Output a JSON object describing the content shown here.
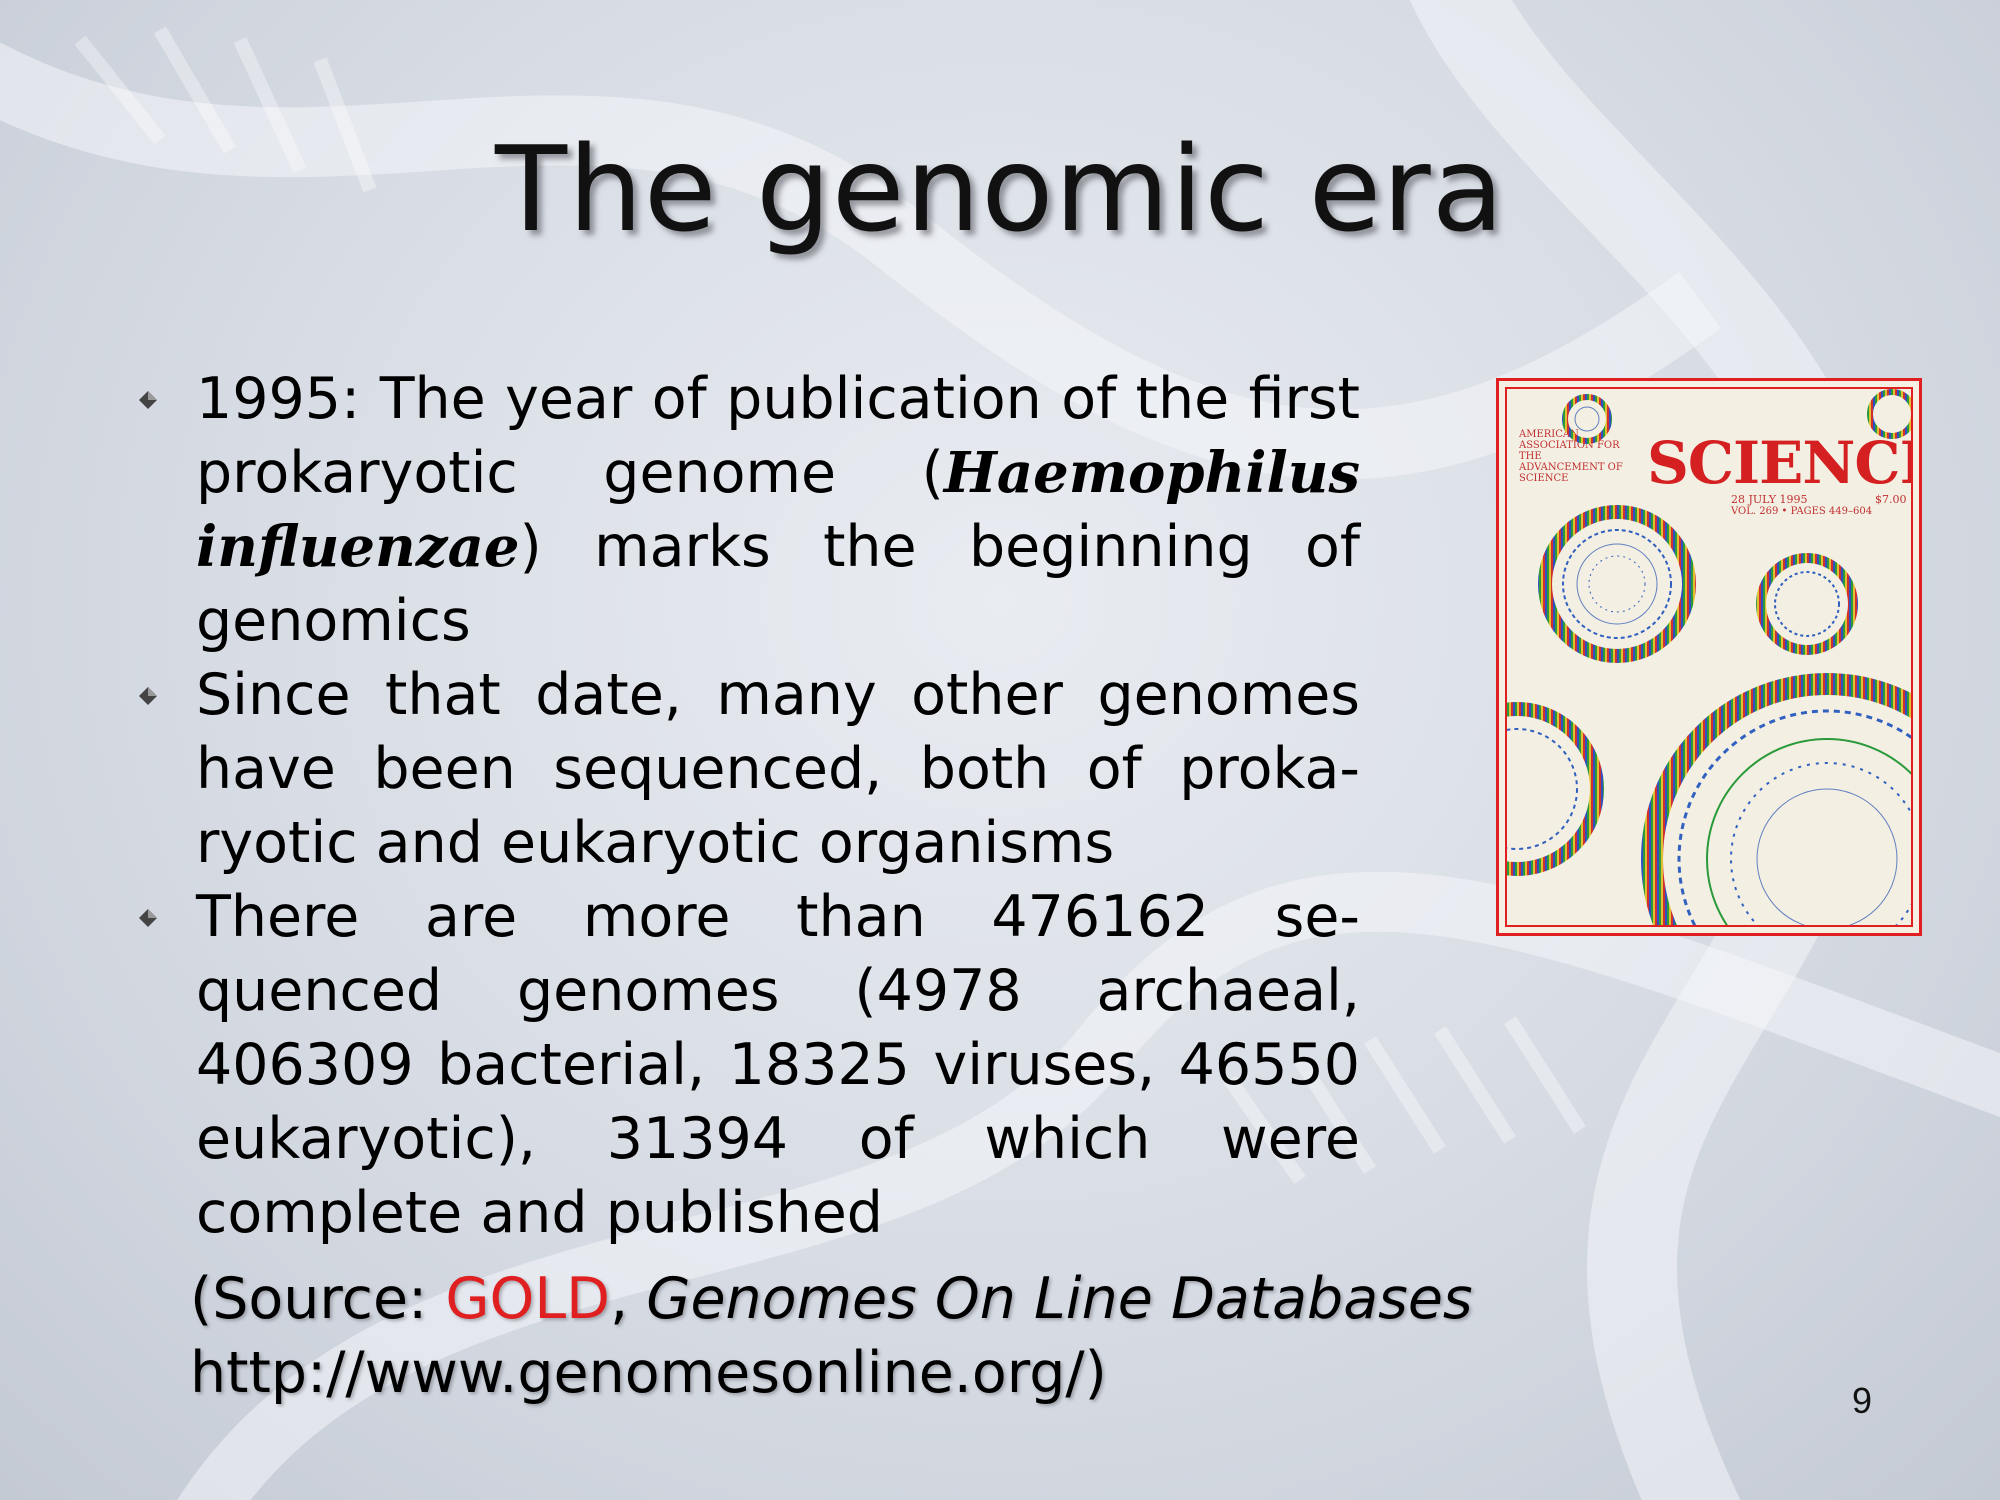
{
  "slide": {
    "title": "The genomic era",
    "page_number": "9"
  },
  "bullets": [
    {
      "icon": "diamond-bullet-icon",
      "text_before": "1995: The year of publication of the first prokaryotic genome (",
      "species": "Haemophilus influenzae",
      "text_after": ") marks the beginning of genomics"
    },
    {
      "icon": "diamond-bullet-icon",
      "text": "Since that date, many other genomes have been sequenced, both of proka-ryotic and eukaryotic organisms"
    },
    {
      "icon": "diamond-bullet-icon",
      "text": "There are more than 476162 se-quenced genomes (4978 archaeal, 406309 bacterial, 18325 viruses, 46550 eukaryotic), 31394 of which were complete and published"
    }
  ],
  "source": {
    "prefix": "(Source: ",
    "gold": "GOLD",
    "separator": ", ",
    "name": "Genomes On Line Databases",
    "url": "http://www.genomesonline.org/",
    "suffix": ")"
  },
  "cover": {
    "journal": "SCIENCE",
    "publisher": "AMERICAN ASSOCIATION FOR THE ADVANCEMENT OF SCIENCE",
    "date": "28 JULY 1995",
    "price": "$7.00",
    "volume": "VOL. 269 • PAGES 449–604"
  },
  "colors": {
    "accent_red": "#e02020",
    "background": "#d7dce4"
  }
}
